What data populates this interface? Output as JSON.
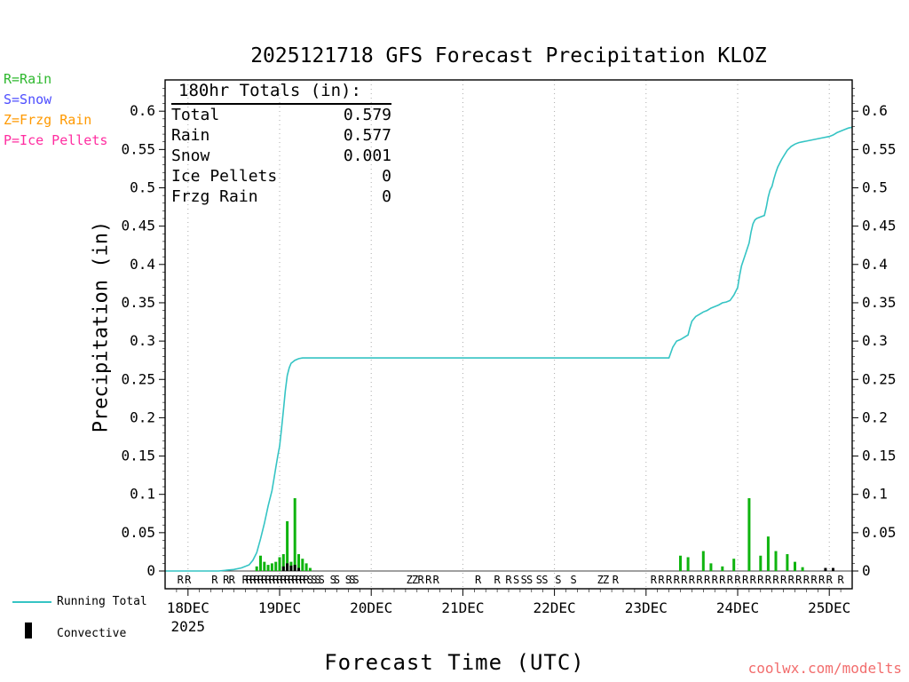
{
  "watermark": "coolwx.com/modelts",
  "colors": {
    "running_total": "#35c4c4",
    "precip_bar": "#0fb40f",
    "convective": "#000000",
    "watermark": "#f26d6d",
    "grid": "#aaaaaa"
  },
  "type_legend": [
    {
      "label": "R=Rain",
      "color": "#2eb82e"
    },
    {
      "label": "S=Snow",
      "color": "#4d4dff"
    },
    {
      "label": "Z=Frzg Rain",
      "color": "#ff9900"
    },
    {
      "label": "P=Ice Pellets",
      "color": "#ff2da0"
    }
  ],
  "totals": {
    "heading": "180hr Totals (in):",
    "rows": [
      {
        "label": "Total",
        "value": "0.579"
      },
      {
        "label": "Rain",
        "value": "0.577"
      },
      {
        "label": "Snow",
        "value": "0.001"
      },
      {
        "label": "Ice Pellets",
        "value": "0"
      },
      {
        "label": "Frzg Rain",
        "value": "0"
      }
    ]
  },
  "legend": {
    "running_total": "Running Total",
    "convective": "Convective"
  },
  "chart_data": {
    "type": "line+bar",
    "title": "2025121718 GFS Forecast Precipitation KLOZ",
    "xlabel": "Forecast Time (UTC)",
    "ylabel": "Precipitation (in)",
    "x_unit": "hours from forecast start (2025-12-17 18 UTC), 180hr span",
    "xlim": [
      0,
      180
    ],
    "ylim": [
      -0.023,
      0.641
    ],
    "grid": "vertical dotted at day ticks",
    "legend_position": "bottom-left",
    "y_ticks": [
      {
        "v": 0,
        "label": "0"
      },
      {
        "v": 0.05,
        "label": "0.05"
      },
      {
        "v": 0.1,
        "label": "0.1"
      },
      {
        "v": 0.15,
        "label": "0.15"
      },
      {
        "v": 0.2,
        "label": "0.2"
      },
      {
        "v": 0.25,
        "label": "0.25"
      },
      {
        "v": 0.3,
        "label": "0.3"
      },
      {
        "v": 0.35,
        "label": "0.35"
      },
      {
        "v": 0.4,
        "label": "0.4"
      },
      {
        "v": 0.45,
        "label": "0.45"
      },
      {
        "v": 0.5,
        "label": "0.5"
      },
      {
        "v": 0.55,
        "label": "0.55"
      },
      {
        "v": 0.6,
        "label": "0.6"
      }
    ],
    "x_ticks": [
      {
        "hour": 6,
        "label": "18DEC",
        "sub": "2025"
      },
      {
        "hour": 30,
        "label": "19DEC"
      },
      {
        "hour": 54,
        "label": "20DEC"
      },
      {
        "hour": 78,
        "label": "21DEC"
      },
      {
        "hour": 102,
        "label": "22DEC"
      },
      {
        "hour": 126,
        "label": "23DEC"
      },
      {
        "hour": 150,
        "label": "24DEC"
      },
      {
        "hour": 174,
        "label": "25DEC"
      }
    ],
    "series": [
      {
        "name": "Precipitation",
        "type": "bar",
        "color": "#0fb40f",
        "points": [
          [
            24,
            0.006
          ],
          [
            25,
            0.02
          ],
          [
            26,
            0.012
          ],
          [
            27,
            0.008
          ],
          [
            28,
            0.01
          ],
          [
            29,
            0.012
          ],
          [
            30,
            0.018
          ],
          [
            31,
            0.022
          ],
          [
            32,
            0.065
          ],
          [
            33,
            0.012
          ],
          [
            34,
            0.095
          ],
          [
            35,
            0.022
          ],
          [
            36,
            0.016
          ],
          [
            37,
            0.01
          ],
          [
            38,
            0.004
          ],
          [
            135,
            0.02
          ],
          [
            137,
            0.018
          ],
          [
            141,
            0.026
          ],
          [
            143,
            0.01
          ],
          [
            146,
            0.006
          ],
          [
            149,
            0.016
          ],
          [
            153,
            0.095
          ],
          [
            156,
            0.02
          ],
          [
            158,
            0.045
          ],
          [
            160,
            0.026
          ],
          [
            163,
            0.022
          ],
          [
            165,
            0.012
          ],
          [
            167,
            0.005
          ]
        ]
      },
      {
        "name": "Convective",
        "type": "bar",
        "color": "#000000",
        "points": [
          [
            31,
            0.006
          ],
          [
            32,
            0.01
          ],
          [
            33,
            0.007
          ],
          [
            34,
            0.008
          ],
          [
            35,
            0.004
          ],
          [
            173,
            0.004
          ],
          [
            175,
            0.004
          ]
        ]
      },
      {
        "name": "Running Total",
        "type": "line",
        "color": "#35c4c4",
        "points": [
          [
            0,
            0
          ],
          [
            14,
            0
          ],
          [
            18,
            0.002
          ],
          [
            20,
            0.004
          ],
          [
            22,
            0.008
          ],
          [
            23,
            0.014
          ],
          [
            24,
            0.024
          ],
          [
            25,
            0.042
          ],
          [
            26,
            0.062
          ],
          [
            27,
            0.085
          ],
          [
            28,
            0.105
          ],
          [
            28.5,
            0.12
          ],
          [
            29,
            0.135
          ],
          [
            29.5,
            0.15
          ],
          [
            30,
            0.163
          ],
          [
            30.5,
            0.185
          ],
          [
            31,
            0.21
          ],
          [
            31.5,
            0.235
          ],
          [
            32,
            0.255
          ],
          [
            32.5,
            0.265
          ],
          [
            33,
            0.271
          ],
          [
            34,
            0.275
          ],
          [
            35,
            0.277
          ],
          [
            36,
            0.278
          ],
          [
            132,
            0.278
          ],
          [
            133,
            0.292
          ],
          [
            134,
            0.3
          ],
          [
            135,
            0.302
          ],
          [
            136,
            0.305
          ],
          [
            137,
            0.308
          ],
          [
            137.5,
            0.318
          ],
          [
            138,
            0.326
          ],
          [
            139,
            0.332
          ],
          [
            140,
            0.335
          ],
          [
            141,
            0.338
          ],
          [
            142,
            0.34
          ],
          [
            143,
            0.343
          ],
          [
            144,
            0.345
          ],
          [
            145,
            0.347
          ],
          [
            146,
            0.35
          ],
          [
            147,
            0.351
          ],
          [
            148,
            0.353
          ],
          [
            149,
            0.36
          ],
          [
            150,
            0.37
          ],
          [
            150.5,
            0.385
          ],
          [
            151,
            0.398
          ],
          [
            152,
            0.413
          ],
          [
            153,
            0.428
          ],
          [
            153.5,
            0.442
          ],
          [
            154,
            0.453
          ],
          [
            154.5,
            0.458
          ],
          [
            155,
            0.46
          ],
          [
            156,
            0.462
          ],
          [
            157,
            0.464
          ],
          [
            157.5,
            0.475
          ],
          [
            158,
            0.488
          ],
          [
            158.5,
            0.497
          ],
          [
            159,
            0.502
          ],
          [
            159.5,
            0.512
          ],
          [
            160,
            0.52
          ],
          [
            160.5,
            0.527
          ],
          [
            161,
            0.532
          ],
          [
            161.5,
            0.537
          ],
          [
            162,
            0.541
          ],
          [
            163,
            0.549
          ],
          [
            164,
            0.554
          ],
          [
            165,
            0.557
          ],
          [
            166,
            0.559
          ],
          [
            167,
            0.56
          ],
          [
            168,
            0.561
          ],
          [
            170,
            0.563
          ],
          [
            172,
            0.565
          ],
          [
            174,
            0.567
          ],
          [
            175,
            0.569
          ],
          [
            176,
            0.572
          ],
          [
            177,
            0.574
          ],
          [
            178,
            0.576
          ],
          [
            179,
            0.578
          ],
          [
            180,
            0.579
          ]
        ]
      }
    ],
    "ptype_markers": {
      "colors": {
        "R": "#2eb82e",
        "S": "#4d4dff",
        "Z": "#ff9900",
        "P": "#ff2da0"
      },
      "items": [
        [
          4,
          "R"
        ],
        [
          6,
          "R"
        ],
        [
          13,
          "R"
        ],
        [
          16,
          "R"
        ],
        [
          17.5,
          "R"
        ],
        [
          21,
          "R"
        ],
        [
          22,
          "R"
        ],
        [
          23,
          "R"
        ],
        [
          24,
          "R"
        ],
        [
          25,
          "R"
        ],
        [
          26,
          "R"
        ],
        [
          27,
          "R"
        ],
        [
          28,
          "R"
        ],
        [
          29,
          "R"
        ],
        [
          30,
          "R"
        ],
        [
          31,
          "R"
        ],
        [
          32,
          "R"
        ],
        [
          33,
          "R"
        ],
        [
          34,
          "R"
        ],
        [
          35,
          "R"
        ],
        [
          36,
          "R"
        ],
        [
          37,
          "R"
        ],
        [
          38,
          "S"
        ],
        [
          39,
          "S"
        ],
        [
          40,
          "S"
        ],
        [
          41,
          "S"
        ],
        [
          44,
          "S"
        ],
        [
          45,
          "S"
        ],
        [
          48,
          "S"
        ],
        [
          49,
          "S"
        ],
        [
          50,
          "S"
        ],
        [
          64,
          "Z"
        ],
        [
          65.5,
          "Z"
        ],
        [
          67,
          "R"
        ],
        [
          69,
          "R"
        ],
        [
          71,
          "R"
        ],
        [
          82,
          "R"
        ],
        [
          87,
          "R"
        ],
        [
          90,
          "R"
        ],
        [
          92,
          "S"
        ],
        [
          94,
          "S"
        ],
        [
          95.5,
          "S"
        ],
        [
          98,
          "S"
        ],
        [
          99.5,
          "S"
        ],
        [
          103,
          "S"
        ],
        [
          107,
          "S"
        ],
        [
          114,
          "Z"
        ],
        [
          115.5,
          "Z"
        ],
        [
          118,
          "R"
        ],
        [
          128,
          "R"
        ],
        [
          130,
          "R"
        ],
        [
          132,
          "R"
        ],
        [
          134,
          "R"
        ],
        [
          136,
          "R"
        ],
        [
          138,
          "R"
        ],
        [
          140,
          "R"
        ],
        [
          142,
          "R"
        ],
        [
          144,
          "R"
        ],
        [
          146,
          "R"
        ],
        [
          148,
          "R"
        ],
        [
          150,
          "R"
        ],
        [
          152,
          "R"
        ],
        [
          154,
          "R"
        ],
        [
          156,
          "R"
        ],
        [
          158,
          "R"
        ],
        [
          160,
          "R"
        ],
        [
          162,
          "R"
        ],
        [
          164,
          "R"
        ],
        [
          166,
          "R"
        ],
        [
          168,
          "R"
        ],
        [
          170,
          "R"
        ],
        [
          172,
          "R"
        ],
        [
          174,
          "R"
        ],
        [
          177,
          "R"
        ]
      ]
    }
  }
}
